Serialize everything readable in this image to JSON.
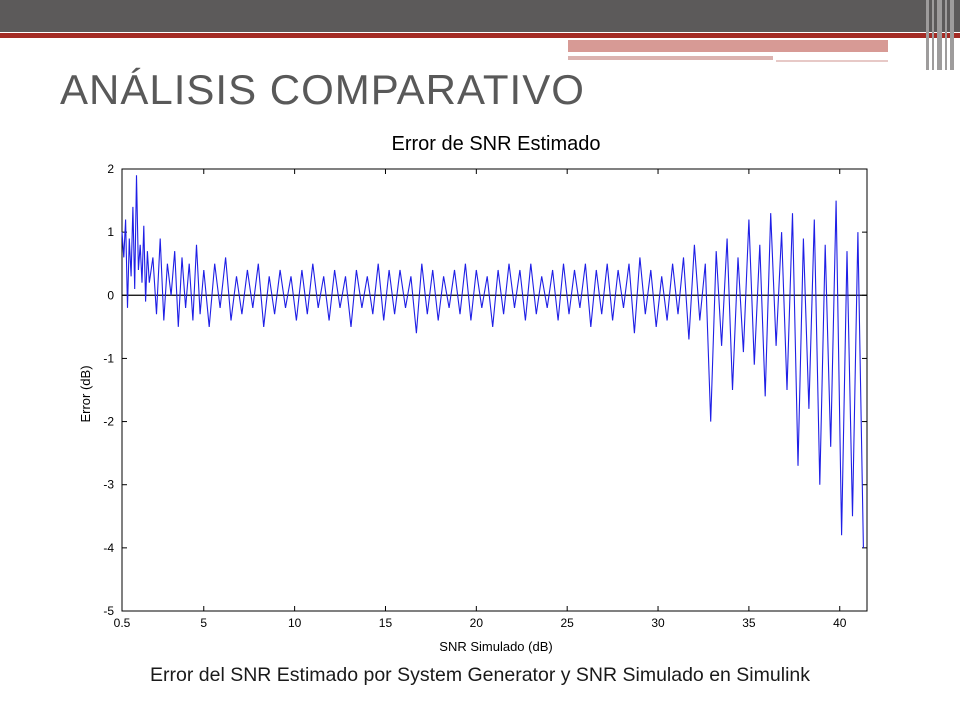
{
  "slide": {
    "title": "ANÁLISIS COMPARATIVO",
    "caption": "Error del SNR Estimado por System Generator y SNR Simulado en Simulink"
  },
  "theme": {
    "top_bar_color": "#5c5a5a",
    "accent_red": "#a32b24",
    "accent_pink": "#d79a95",
    "title_color": "#595959"
  },
  "chart_data": {
    "type": "line",
    "title": "Error de SNR Estimado",
    "xlabel": "SNR Simulado (dB)",
    "ylabel": "Error (dB)",
    "xlim": [
      0.5,
      41.5
    ],
    "ylim": [
      -5,
      2
    ],
    "xticks": [
      0.5,
      5,
      10,
      15,
      20,
      25,
      30,
      35,
      40
    ],
    "xtick_labels": [
      "0.5",
      "5",
      "10",
      "15",
      "20",
      "25",
      "30",
      "35",
      "40"
    ],
    "yticks": [
      2,
      1,
      0,
      -1,
      -2,
      -3,
      -4,
      -5
    ],
    "ytick_labels": [
      "2",
      "1",
      "0",
      "-1",
      "-2",
      "-3",
      "-4",
      "-5"
    ],
    "grid": false,
    "series": [
      {
        "color": "#1f1fe6",
        "x": [
          0.5,
          0.6,
          0.7,
          0.8,
          0.9,
          1.0,
          1.1,
          1.2,
          1.3,
          1.4,
          1.5,
          1.6,
          1.7,
          1.8,
          1.9,
          2.0,
          2.2,
          2.4,
          2.6,
          2.8,
          3.0,
          3.2,
          3.4,
          3.6,
          3.8,
          4.0,
          4.2,
          4.4,
          4.6,
          4.8,
          5.0,
          5.3,
          5.6,
          5.9,
          6.2,
          6.5,
          6.8,
          7.1,
          7.4,
          7.7,
          8.0,
          8.3,
          8.6,
          8.9,
          9.2,
          9.5,
          9.8,
          10.1,
          10.4,
          10.7,
          11.0,
          11.3,
          11.6,
          11.9,
          12.2,
          12.5,
          12.8,
          13.1,
          13.4,
          13.7,
          14.0,
          14.3,
          14.6,
          14.9,
          15.2,
          15.5,
          15.8,
          16.1,
          16.4,
          16.7,
          17.0,
          17.3,
          17.6,
          17.9,
          18.2,
          18.5,
          18.8,
          19.1,
          19.4,
          19.7,
          20.0,
          20.3,
          20.6,
          20.9,
          21.2,
          21.5,
          21.8,
          22.1,
          22.4,
          22.7,
          23.0,
          23.3,
          23.6,
          23.9,
          24.2,
          24.5,
          24.8,
          25.1,
          25.4,
          25.7,
          26.0,
          26.3,
          26.6,
          26.9,
          27.2,
          27.5,
          27.8,
          28.1,
          28.4,
          28.7,
          29.0,
          29.3,
          29.6,
          29.9,
          30.2,
          30.5,
          30.8,
          31.1,
          31.4,
          31.7,
          32.0,
          32.3,
          32.6,
          32.9,
          33.2,
          33.5,
          33.8,
          34.1,
          34.4,
          34.7,
          35.0,
          35.3,
          35.6,
          35.9,
          36.2,
          36.5,
          36.8,
          37.1,
          37.4,
          37.7,
          38.0,
          38.3,
          38.6,
          38.9,
          39.2,
          39.5,
          39.8,
          40.1,
          40.4,
          40.7,
          41.0,
          41.3
        ],
        "y": [
          1.0,
          0.6,
          1.2,
          -0.2,
          0.9,
          0.3,
          1.4,
          0.1,
          1.9,
          0.4,
          0.8,
          0.2,
          1.1,
          -0.1,
          0.7,
          0.2,
          0.6,
          -0.3,
          0.9,
          -0.4,
          0.5,
          0.0,
          0.7,
          -0.5,
          0.6,
          -0.2,
          0.5,
          -0.4,
          0.8,
          -0.3,
          0.4,
          -0.5,
          0.5,
          -0.2,
          0.6,
          -0.4,
          0.3,
          -0.3,
          0.4,
          -0.2,
          0.5,
          -0.5,
          0.3,
          -0.3,
          0.4,
          -0.2,
          0.3,
          -0.4,
          0.4,
          -0.3,
          0.5,
          -0.2,
          0.3,
          -0.4,
          0.4,
          -0.2,
          0.3,
          -0.5,
          0.4,
          -0.2,
          0.3,
          -0.3,
          0.5,
          -0.4,
          0.4,
          -0.3,
          0.4,
          -0.2,
          0.3,
          -0.6,
          0.5,
          -0.3,
          0.4,
          -0.4,
          0.3,
          -0.2,
          0.4,
          -0.3,
          0.5,
          -0.4,
          0.4,
          -0.2,
          0.3,
          -0.5,
          0.4,
          -0.3,
          0.5,
          -0.2,
          0.4,
          -0.4,
          0.5,
          -0.3,
          0.3,
          -0.2,
          0.4,
          -0.4,
          0.5,
          -0.3,
          0.4,
          -0.2,
          0.5,
          -0.5,
          0.4,
          -0.3,
          0.5,
          -0.4,
          0.4,
          -0.2,
          0.5,
          -0.6,
          0.6,
          -0.3,
          0.4,
          -0.5,
          0.3,
          -0.4,
          0.5,
          -0.3,
          0.6,
          -0.7,
          0.8,
          -0.4,
          0.5,
          -2.0,
          0.7,
          -0.8,
          0.9,
          -1.5,
          0.6,
          -0.9,
          1.2,
          -1.1,
          0.8,
          -1.6,
          1.3,
          -0.8,
          1.0,
          -1.5,
          1.3,
          -2.7,
          0.9,
          -1.8,
          1.2,
          -3.0,
          0.8,
          -2.4,
          1.5,
          -3.8,
          0.7,
          -3.5,
          1.0,
          -4.0
        ]
      }
    ]
  }
}
